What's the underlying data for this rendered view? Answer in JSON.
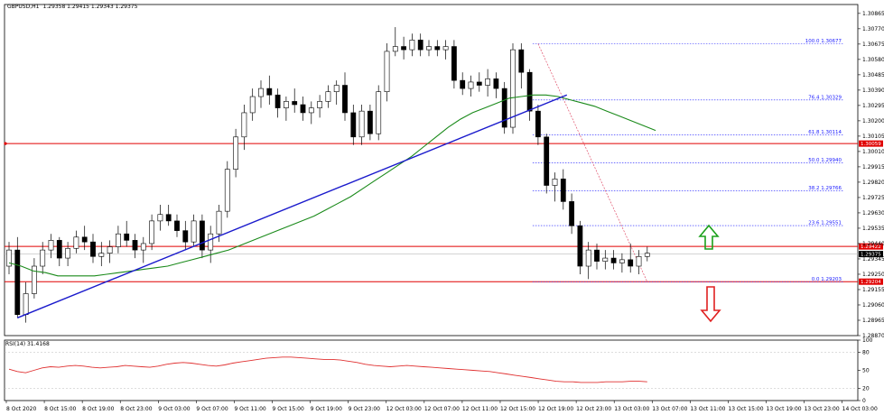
{
  "header": {
    "symbol": "GBPUSD,H1",
    "ohlc": "1.29358 1.29415 1.29343 1.29375"
  },
  "rsi_header": "RSI(14) 31.4168",
  "colors": {
    "bull": "#ffffff",
    "bear": "#000000",
    "ma": "#1a8a1a",
    "trend": "#1a1acc",
    "level": "#e00000",
    "fib": "#1a1aff",
    "rsi": "#e03030",
    "arrow_up": "#1aa01a",
    "arrow_down": "#e02020"
  },
  "chart_data": {
    "type": "candlestick",
    "price_axis_ticks": [
      "1.30865",
      "1.30770",
      "1.30675",
      "1.30580",
      "1.30485",
      "1.30390",
      "1.30295",
      "1.30200",
      "1.30105",
      "1.30010",
      "1.29915",
      "1.29820",
      "1.29725",
      "1.29630",
      "1.29535",
      "1.29440",
      "1.29345",
      "1.29250",
      "1.29155",
      "1.29060",
      "1.28965",
      "1.28870"
    ],
    "price_range": [
      1.2887,
      1.3092
    ],
    "time_axis_ticks": [
      "8 Oct 2020",
      "8 Oct 15:00",
      "8 Oct 19:00",
      "8 Oct 23:00",
      "9 Oct 03:00",
      "9 Oct 07:00",
      "9 Oct 11:00",
      "9 Oct 15:00",
      "9 Oct 19:00",
      "9 Oct 23:00",
      "12 Oct 03:00",
      "12 Oct 07:00",
      "12 Oct 11:00",
      "12 Oct 15:00",
      "12 Oct 19:00",
      "12 Oct 23:00",
      "13 Oct 03:00",
      "13 Oct 07:00",
      "13 Oct 11:00",
      "13 Oct 15:00",
      "13 Oct 19:00",
      "13 Oct 23:00",
      "14 Oct 03:00"
    ],
    "rsi_axis_ticks": [
      "100",
      "80",
      "50",
      "20",
      "0"
    ],
    "rsi_range": [
      0,
      100
    ],
    "horizontal_levels": [
      {
        "value": 1.30059,
        "label": "1.30059"
      },
      {
        "value": 1.29422,
        "label": "1.29422"
      },
      {
        "value": 1.29204,
        "label": "1.29204"
      }
    ],
    "current_price": {
      "value": 1.29375,
      "label": "1.29375"
    },
    "fibonacci": [
      {
        "ratio_label": "100.0",
        "value": 1.30677,
        "label": "100.0  1.30677"
      },
      {
        "ratio_label": "76.4",
        "value": 1.30329,
        "label": "76.4  1.30329"
      },
      {
        "ratio_label": "61.8",
        "value": 1.30114,
        "label": "61.8  1.30114"
      },
      {
        "ratio_label": "50.0",
        "value": 1.2994,
        "label": "50.0  1.29940"
      },
      {
        "ratio_label": "38.2",
        "value": 1.29766,
        "label": "38.2  1.29766"
      },
      {
        "ratio_label": "23.6",
        "value": 1.29551,
        "label": "23.6  1.29551"
      },
      {
        "ratio_label": "0.0",
        "value": 1.29203,
        "label": "0.0  1.29203"
      }
    ],
    "candles": [
      [
        1.293,
        1.2945,
        1.2925,
        1.294
      ],
      [
        1.294,
        1.2948,
        1.2898,
        1.29
      ],
      [
        1.29,
        1.292,
        1.2895,
        1.2913
      ],
      [
        1.2913,
        1.2935,
        1.291,
        1.293
      ],
      [
        1.293,
        1.2945,
        1.2925,
        1.294
      ],
      [
        1.294,
        1.295,
        1.2935,
        1.2946
      ],
      [
        1.2946,
        1.2948,
        1.293,
        1.2935
      ],
      [
        1.2935,
        1.2945,
        1.293,
        1.2941
      ],
      [
        1.2941,
        1.2952,
        1.2938,
        1.2948
      ],
      [
        1.2948,
        1.2955,
        1.294,
        1.2945
      ],
      [
        1.2945,
        1.295,
        1.2932,
        1.2936
      ],
      [
        1.2936,
        1.2945,
        1.293,
        1.2938
      ],
      [
        1.2938,
        1.2946,
        1.2932,
        1.2942
      ],
      [
        1.2942,
        1.2955,
        1.2938,
        1.295
      ],
      [
        1.295,
        1.2958,
        1.2942,
        1.2946
      ],
      [
        1.2946,
        1.295,
        1.2935,
        1.294
      ],
      [
        1.294,
        1.2948,
        1.2932,
        1.2944
      ],
      [
        1.2944,
        1.2962,
        1.294,
        1.2958
      ],
      [
        1.2958,
        1.2968,
        1.2952,
        1.2962
      ],
      [
        1.2962,
        1.2968,
        1.2955,
        1.2958
      ],
      [
        1.2958,
        1.2962,
        1.2948,
        1.2952
      ],
      [
        1.2952,
        1.2958,
        1.294,
        1.2945
      ],
      [
        1.2945,
        1.2962,
        1.2942,
        1.2958
      ],
      [
        1.2958,
        1.2962,
        1.2935,
        1.294
      ],
      [
        1.294,
        1.2955,
        1.2932,
        1.295
      ],
      [
        1.295,
        1.2968,
        1.2945,
        1.2964
      ],
      [
        1.2964,
        1.2995,
        1.296,
        1.299
      ],
      [
        1.299,
        1.3015,
        1.2985,
        1.301
      ],
      [
        1.301,
        1.303,
        1.3002,
        1.3025
      ],
      [
        1.3025,
        1.304,
        1.302,
        1.3035
      ],
      [
        1.3035,
        1.3045,
        1.3028,
        1.304
      ],
      [
        1.304,
        1.3048,
        1.303,
        1.3036
      ],
      [
        1.3036,
        1.304,
        1.3022,
        1.3028
      ],
      [
        1.3028,
        1.3035,
        1.302,
        1.3032
      ],
      [
        1.3032,
        1.304,
        1.3025,
        1.303
      ],
      [
        1.303,
        1.3035,
        1.302,
        1.3025
      ],
      [
        1.3025,
        1.3032,
        1.3018,
        1.3028
      ],
      [
        1.3028,
        1.3036,
        1.3022,
        1.3032
      ],
      [
        1.3032,
        1.3042,
        1.3028,
        1.3038
      ],
      [
        1.3038,
        1.3045,
        1.303,
        1.3042
      ],
      [
        1.3042,
        1.305,
        1.302,
        1.3025
      ],
      [
        1.3025,
        1.303,
        1.3005,
        1.301
      ],
      [
        1.301,
        1.303,
        1.3005,
        1.3026
      ],
      [
        1.3026,
        1.303,
        1.3008,
        1.3012
      ],
      [
        1.3012,
        1.3042,
        1.3008,
        1.3038
      ],
      [
        1.3038,
        1.3068,
        1.3032,
        1.3063
      ],
      [
        1.3063,
        1.3078,
        1.306,
        1.3066
      ],
      [
        1.3066,
        1.3072,
        1.3058,
        1.3064
      ],
      [
        1.3064,
        1.3074,
        1.306,
        1.307
      ],
      [
        1.307,
        1.3074,
        1.306,
        1.3064
      ],
      [
        1.3064,
        1.307,
        1.306,
        1.3066
      ],
      [
        1.3066,
        1.307,
        1.306,
        1.3064
      ],
      [
        1.3064,
        1.307,
        1.3058,
        1.3066
      ],
      [
        1.3066,
        1.307,
        1.304,
        1.3045
      ],
      [
        1.3045,
        1.305,
        1.3036,
        1.304
      ],
      [
        1.304,
        1.3048,
        1.3035,
        1.3044
      ],
      [
        1.3044,
        1.305,
        1.3038,
        1.3042
      ],
      [
        1.3042,
        1.3052,
        1.3035,
        1.3046
      ],
      [
        1.3046,
        1.305,
        1.3034,
        1.304
      ],
      [
        1.304,
        1.3044,
        1.3012,
        1.3016
      ],
      [
        1.3016,
        1.3068,
        1.3012,
        1.3064
      ],
      [
        1.3064,
        1.3068,
        1.304,
        1.305
      ],
      [
        1.305,
        1.3052,
        1.302,
        1.3026
      ],
      [
        1.3026,
        1.303,
        1.3005,
        1.301
      ],
      [
        1.301,
        1.3012,
        1.2975,
        1.298
      ],
      [
        1.298,
        1.2988,
        1.297,
        1.2984
      ],
      [
        1.2984,
        1.299,
        1.2965,
        1.297
      ],
      [
        1.297,
        1.2975,
        1.295,
        1.2955
      ],
      [
        1.2955,
        1.2958,
        1.2925,
        1.293
      ],
      [
        1.293,
        1.2945,
        1.2922,
        1.294
      ],
      [
        1.294,
        1.2944,
        1.2928,
        1.2933
      ],
      [
        1.2933,
        1.294,
        1.2928,
        1.2935
      ],
      [
        1.2935,
        1.294,
        1.2928,
        1.2932
      ],
      [
        1.2932,
        1.2938,
        1.2926,
        1.2934
      ],
      [
        1.2934,
        1.2944,
        1.2926,
        1.293
      ],
      [
        1.293,
        1.294,
        1.2925,
        1.2936
      ],
      [
        1.2936,
        1.2942,
        1.2933,
        1.2938
      ]
    ],
    "moving_average": [
      1.2932,
      1.293,
      1.2927,
      1.2926,
      1.2924,
      1.2924,
      1.2924,
      1.2924,
      1.2925,
      1.2926,
      1.2927,
      1.2928,
      1.2929,
      1.293,
      1.2932,
      1.2934,
      1.2936,
      1.2938,
      1.294,
      1.2943,
      1.2946,
      1.2949,
      1.2952,
      1.2955,
      1.2958,
      1.2961,
      1.2965,
      1.2969,
      1.2973,
      1.2978,
      1.2983,
      1.2988,
      1.2993,
      1.2998,
      1.3004,
      1.301,
      1.3016,
      1.3021,
      1.3025,
      1.3028,
      1.3031,
      1.3034,
      1.3035,
      1.3036,
      1.3036,
      1.3035,
      1.3033,
      1.3031,
      1.3029,
      1.3026,
      1.3023,
      1.302,
      1.3017,
      1.3014
    ],
    "moving_average_start_index": 0,
    "moving_average_extends_to_index": 77,
    "rsi": [
      52,
      48,
      46,
      50,
      54,
      56,
      55,
      57,
      58,
      57,
      55,
      54,
      55,
      56,
      58,
      57,
      56,
      55,
      57,
      60,
      62,
      63,
      62,
      60,
      58,
      57,
      59,
      62,
      64,
      66,
      68,
      70,
      71,
      72,
      72,
      71,
      70,
      69,
      68,
      68,
      67,
      65,
      63,
      60,
      58,
      57,
      56,
      57,
      58,
      57,
      56,
      55,
      54,
      53,
      52,
      51,
      50,
      49,
      48,
      46,
      44,
      42,
      40,
      38,
      36,
      34,
      32,
      31,
      31,
      30,
      30,
      30,
      31,
      31,
      31,
      32,
      32,
      31
    ]
  },
  "annotations": {
    "arrow_up": "arrow-up",
    "arrow_down": "arrow-down"
  }
}
